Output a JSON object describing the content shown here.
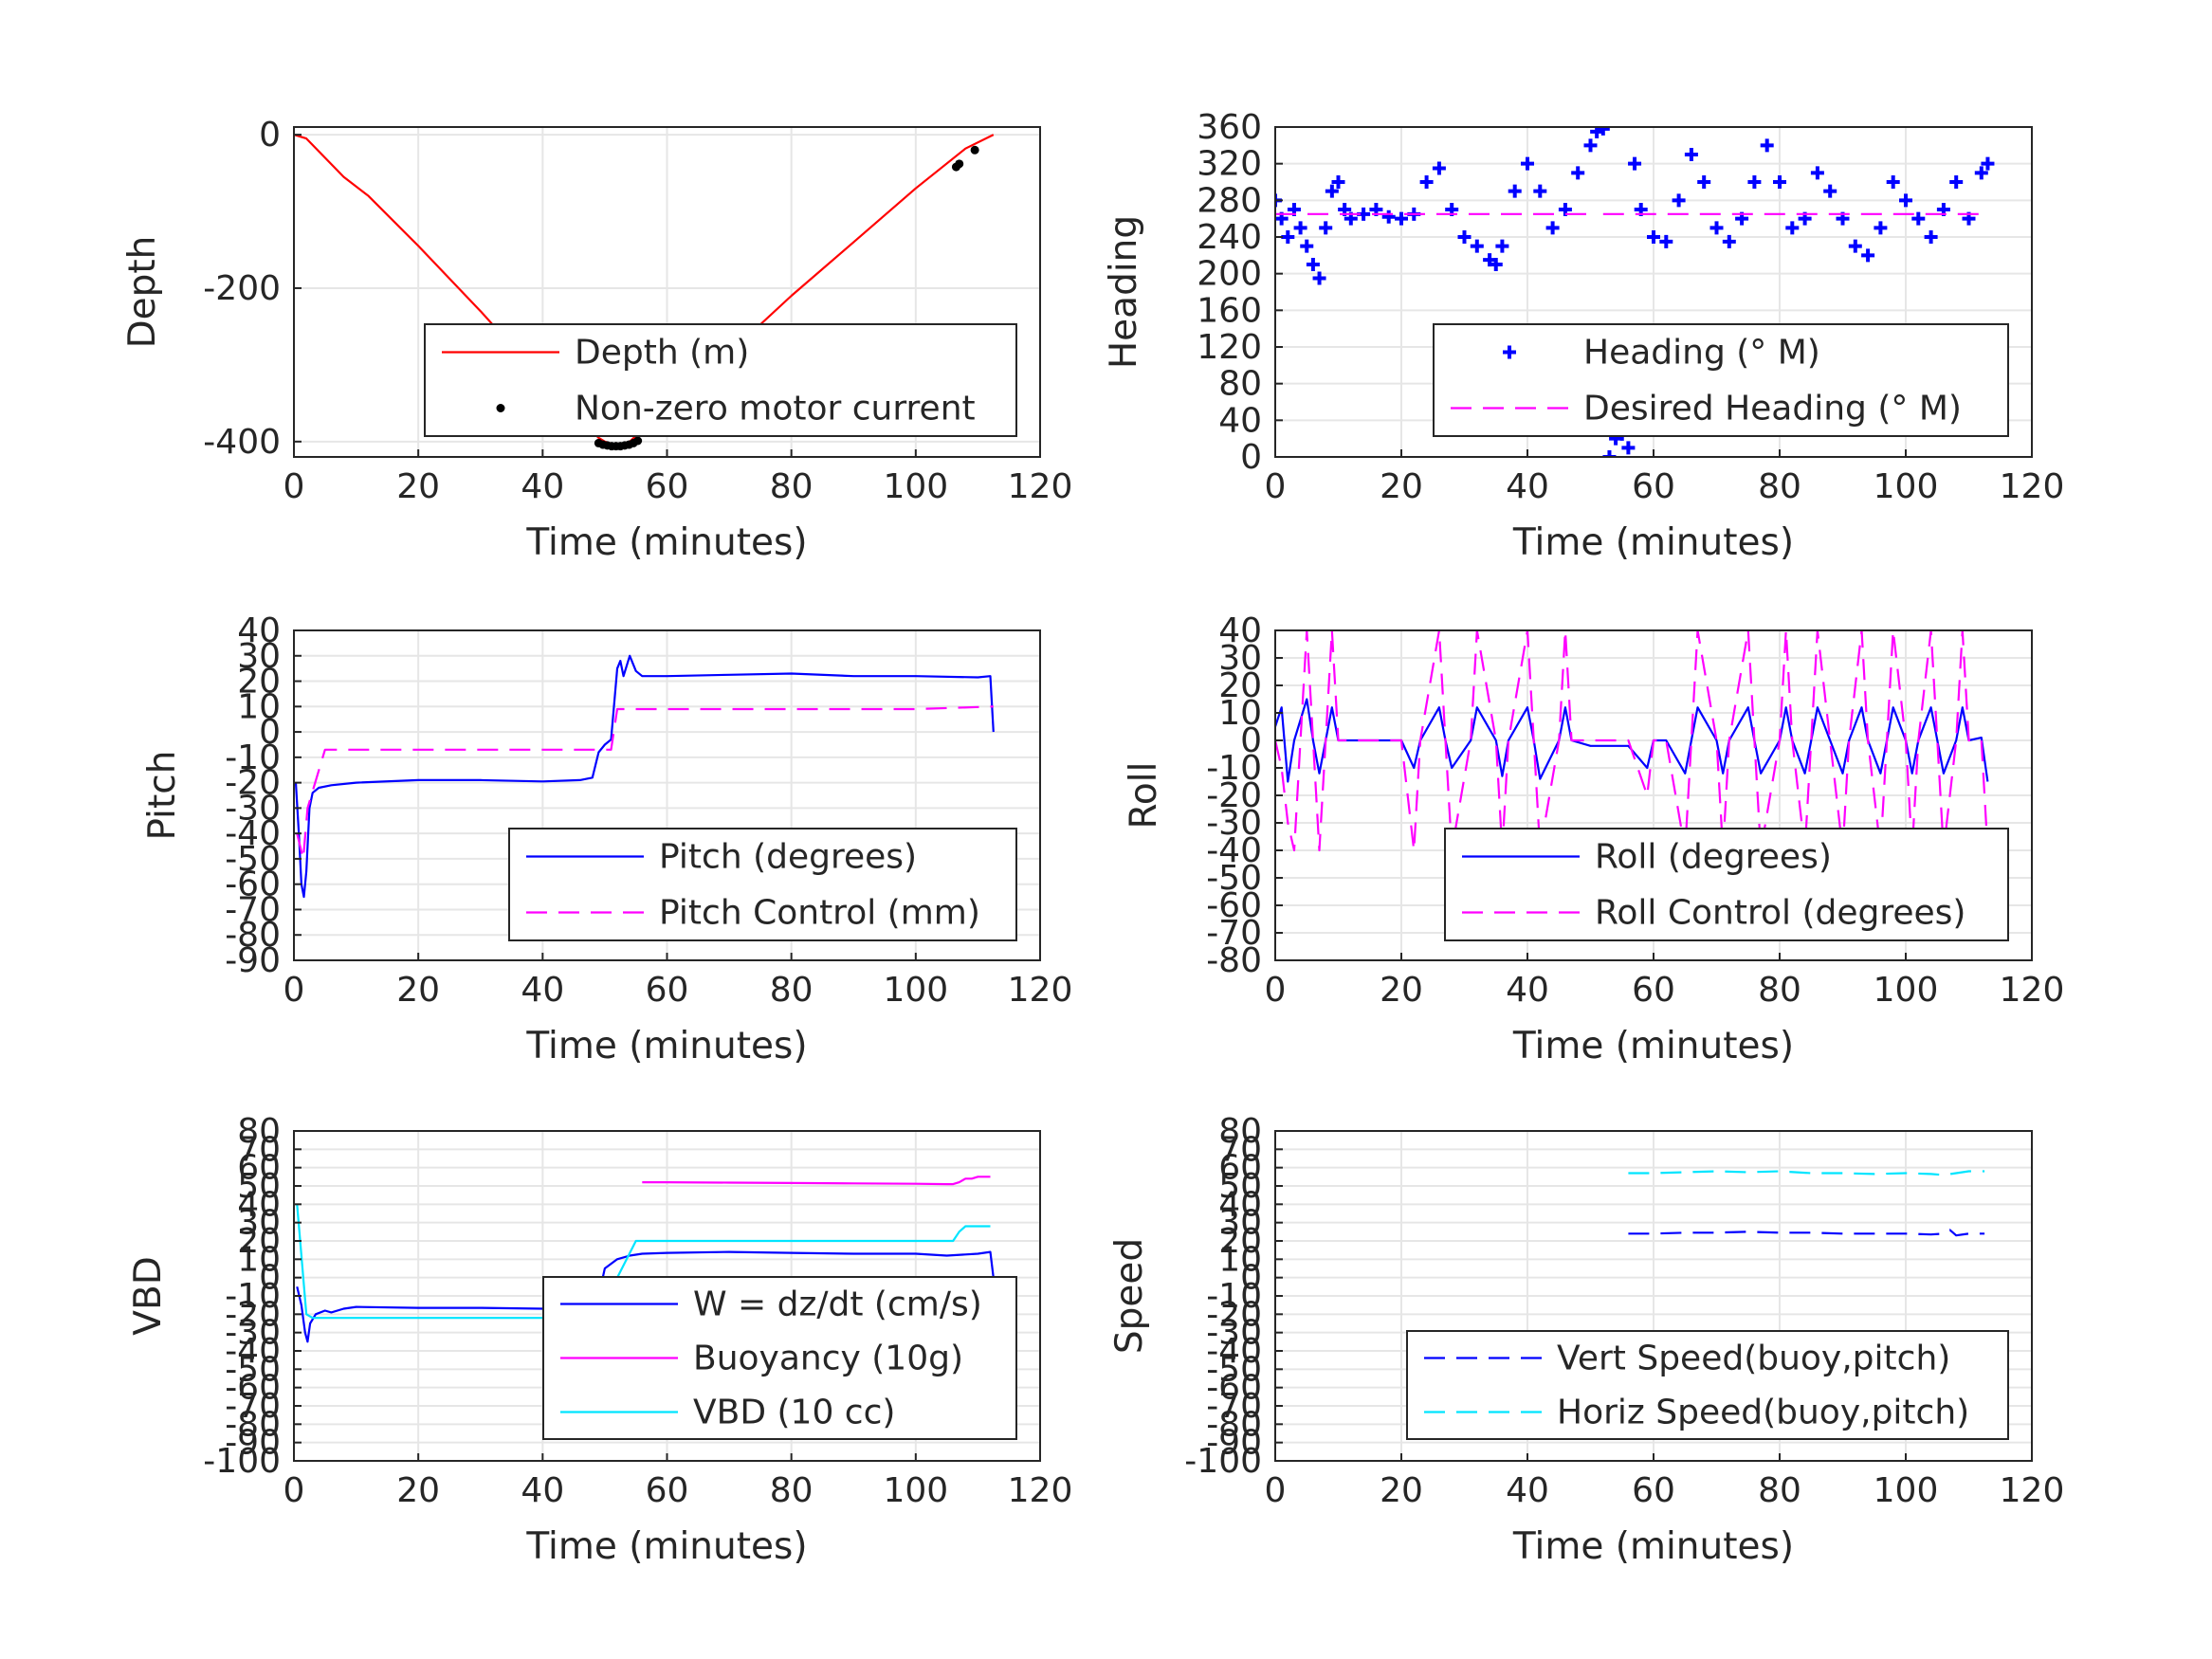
{
  "colors": {
    "depth": "#ff0000",
    "motor": "#000000",
    "heading": "#0000ff",
    "desired_heading": "#ff00ff",
    "pitch": "#0000ff",
    "pitch_control": "#ff00ff",
    "roll": "#0000ff",
    "roll_control": "#ff00ff",
    "w": "#0000ff",
    "buoyancy": "#ff00ff",
    "vbd": "#00e5ff",
    "vert_speed": "#0000ff",
    "horiz_speed": "#00e5ff"
  },
  "chart_data": [
    {
      "id": "depth",
      "type": "line",
      "title": "",
      "xlabel": "Time (minutes)",
      "ylabel": "Depth",
      "xlim": [
        0,
        120
      ],
      "ylim": [
        -420,
        10
      ],
      "xticks": [
        0,
        20,
        40,
        60,
        80,
        100,
        120
      ],
      "yticks": [
        0,
        -200,
        -400
      ],
      "grid": true,
      "legend_placement": "bottom-right",
      "series": [
        {
          "name": "Depth (m)",
          "color": "#ff0000",
          "style": "solid",
          "marker": "none",
          "x": [
            0,
            2,
            5,
            8,
            12,
            20,
            30,
            40,
            49,
            50,
            52,
            54,
            56,
            60,
            70,
            80,
            90,
            100,
            108,
            112.5
          ],
          "y": [
            0,
            -5,
            -30,
            -55,
            -80,
            -145,
            -230,
            -320,
            -395,
            -400,
            -405,
            -400,
            -385,
            -355,
            -285,
            -210,
            -140,
            -70,
            -18,
            0
          ]
        },
        {
          "name": "Non-zero motor current",
          "color": "#000000",
          "style": "none",
          "marker": "dot",
          "x": [
            49,
            49.7,
            50.4,
            51.1,
            51.8,
            52.5,
            53.2,
            53.9,
            54.6,
            55.3,
            106.5,
            107,
            109.5
          ],
          "y": [
            -402,
            -404,
            -405,
            -406,
            -406,
            -406,
            -405,
            -404,
            -402,
            -399,
            -42,
            -38,
            -20
          ]
        }
      ]
    },
    {
      "id": "heading",
      "type": "scatter",
      "title": "",
      "xlabel": "Time (minutes)",
      "ylabel": "Heading",
      "xlim": [
        0,
        120
      ],
      "ylim": [
        0,
        360
      ],
      "xticks": [
        0,
        20,
        40,
        60,
        80,
        100,
        120
      ],
      "yticks": [
        0,
        40,
        80,
        120,
        160,
        200,
        240,
        280,
        320,
        360
      ],
      "grid": true,
      "legend_placement": "bottom-right",
      "series": [
        {
          "name": "Heading (° M)",
          "color": "#0000ff",
          "style": "none",
          "marker": "plus",
          "x": [
            0,
            1,
            2,
            3,
            4,
            5,
            6,
            7,
            8,
            9,
            10,
            11,
            12,
            14,
            16,
            18,
            20,
            22,
            24,
            26,
            28,
            30,
            32,
            34,
            35,
            36,
            38,
            40,
            42,
            44,
            46,
            48,
            50,
            51,
            52,
            53,
            54,
            55,
            56,
            57,
            58,
            60,
            62,
            64,
            66,
            68,
            70,
            72,
            74,
            76,
            78,
            80,
            82,
            84,
            86,
            88,
            90,
            92,
            94,
            96,
            98,
            100,
            102,
            104,
            106,
            108,
            110,
            112,
            113
          ],
          "y": [
            280,
            260,
            240,
            270,
            250,
            230,
            210,
            195,
            250,
            290,
            300,
            270,
            260,
            265,
            270,
            262,
            260,
            265,
            300,
            315,
            270,
            240,
            230,
            215,
            210,
            230,
            290,
            320,
            290,
            250,
            270,
            310,
            340,
            355,
            358,
            0,
            20,
            25,
            10,
            320,
            270,
            240,
            235,
            280,
            330,
            300,
            250,
            235,
            260,
            300,
            340,
            300,
            250,
            260,
            310,
            290,
            260,
            230,
            220,
            250,
            300,
            280,
            260,
            240,
            270,
            300,
            260,
            310,
            320
          ]
        },
        {
          "name": "Desired Heading (° M)",
          "color": "#ff00ff",
          "style": "dashed",
          "marker": "none",
          "x": [
            0,
            40,
            48,
            50,
            null,
            52,
            56,
            60,
            80,
            100,
            113
          ],
          "y": [
            265,
            265,
            265,
            265,
            null,
            265,
            265,
            265,
            265,
            265,
            265
          ]
        }
      ]
    },
    {
      "id": "pitch",
      "type": "line",
      "title": "",
      "xlabel": "Time (minutes)",
      "ylabel": "Pitch",
      "xlim": [
        0,
        120
      ],
      "ylim": [
        -90,
        40
      ],
      "xticks": [
        0,
        20,
        40,
        60,
        80,
        100,
        120
      ],
      "yticks": [
        40,
        30,
        20,
        10,
        0,
        -10,
        -20,
        -30,
        -40,
        -50,
        -60,
        -70,
        -80,
        -90
      ],
      "grid": true,
      "legend_placement": "bottom-right",
      "series": [
        {
          "name": "Pitch (degrees)",
          "color": "#0000ff",
          "style": "solid",
          "marker": "none",
          "x": [
            0.3,
            0.8,
            1.2,
            1.6,
            2.0,
            2.5,
            3,
            4,
            6,
            10,
            20,
            30,
            40,
            46,
            48,
            49,
            50,
            51,
            52,
            52.5,
            53,
            54,
            55,
            56,
            60,
            70,
            80,
            90,
            100,
            110,
            112,
            112.5
          ],
          "y": [
            -20,
            -40,
            -60,
            -65,
            -55,
            -30,
            -24,
            -22,
            -21,
            -20,
            -19,
            -19,
            -19.5,
            -19,
            -18,
            -8,
            -5,
            -3,
            25,
            28,
            22,
            30,
            24,
            22,
            22,
            22.5,
            23,
            22,
            22,
            21.5,
            22,
            0
          ]
        },
        {
          "name": "Pitch Control (mm)",
          "color": "#ff00ff",
          "style": "dashed",
          "marker": "none",
          "x": [
            0.5,
            1.5,
            2.2,
            5,
            20,
            40,
            50,
            51,
            52,
            60,
            80,
            100,
            112.5
          ],
          "y": [
            -40,
            -50,
            -30,
            -7,
            -7,
            -7,
            -7,
            -7,
            9,
            9,
            9,
            9,
            10
          ]
        }
      ]
    },
    {
      "id": "roll",
      "type": "line",
      "title": "",
      "xlabel": "Time (minutes)",
      "ylabel": "Roll",
      "xlim": [
        0,
        120
      ],
      "ylim": [
        -80,
        40
      ],
      "xticks": [
        0,
        20,
        40,
        60,
        80,
        100,
        120
      ],
      "yticks": [
        40,
        30,
        20,
        10,
        0,
        -10,
        -20,
        -30,
        -40,
        -50,
        -60,
        -70,
        -80
      ],
      "grid": true,
      "legend_placement": "bottom-right",
      "series": [
        {
          "name": "Roll (degrees)",
          "color": "#0000ff",
          "style": "solid",
          "marker": "none",
          "x": [
            0,
            1,
            2,
            3,
            5,
            6,
            7,
            8,
            9,
            10,
            12,
            20,
            22,
            23,
            26,
            27,
            28,
            31,
            32,
            35,
            36,
            37,
            40,
            41,
            42,
            45,
            46,
            47,
            50,
            56,
            59,
            60,
            62,
            65,
            66,
            67,
            70,
            71,
            72,
            75,
            76,
            77,
            80,
            81,
            82,
            84,
            85,
            86,
            88,
            90,
            91,
            93,
            94,
            96,
            97,
            98,
            100,
            101,
            102,
            104,
            105,
            106,
            108,
            109,
            110,
            112,
            113
          ],
          "y": [
            5,
            12,
            -15,
            0,
            15,
            0,
            -12,
            0,
            12,
            0,
            0,
            0,
            -10,
            0,
            12,
            0,
            -10,
            0,
            12,
            0,
            -13,
            0,
            12,
            0,
            -14,
            0,
            12,
            0,
            -2,
            -2,
            -10,
            0,
            0,
            -12,
            0,
            12,
            0,
            -12,
            0,
            12,
            0,
            -12,
            0,
            12,
            0,
            -12,
            0,
            12,
            0,
            -12,
            0,
            12,
            0,
            -12,
            0,
            12,
            0,
            -12,
            0,
            12,
            0,
            -12,
            0,
            12,
            0,
            1,
            -15
          ]
        },
        {
          "name": "Roll Control (degrees)",
          "color": "#ff00ff",
          "style": "dashed",
          "marker": "none",
          "x": [
            0,
            1,
            2,
            3,
            4,
            5,
            6,
            7,
            8,
            9,
            10,
            12,
            20,
            22,
            23,
            26,
            27,
            28,
            31,
            32,
            35,
            36,
            37,
            40,
            41,
            42,
            45,
            46,
            47,
            50,
            56,
            59,
            60,
            62,
            65,
            66,
            67,
            70,
            71,
            72,
            75,
            76,
            77,
            80,
            81,
            82,
            84,
            85,
            86,
            88,
            90,
            91,
            93,
            94,
            96,
            97,
            98,
            100,
            101,
            102,
            104,
            105,
            106,
            108,
            109,
            110,
            112,
            113
          ],
          "y": [
            0,
            -10,
            -30,
            -40,
            0,
            40,
            0,
            -40,
            0,
            40,
            0,
            0,
            0,
            -40,
            0,
            40,
            0,
            -40,
            0,
            40,
            0,
            -40,
            0,
            40,
            0,
            -40,
            0,
            40,
            0,
            0,
            0,
            -20,
            0,
            0,
            -40,
            0,
            40,
            0,
            -40,
            0,
            40,
            0,
            -40,
            0,
            40,
            0,
            -40,
            0,
            40,
            0,
            -40,
            0,
            40,
            0,
            -40,
            0,
            40,
            0,
            -40,
            0,
            40,
            0,
            -40,
            0,
            40,
            0,
            0,
            -40
          ]
        }
      ]
    },
    {
      "id": "vbd",
      "type": "line",
      "title": "",
      "xlabel": "Time (minutes)",
      "ylabel": "VBD",
      "xlim": [
        0,
        120
      ],
      "ylim": [
        -100,
        80
      ],
      "xticks": [
        0,
        20,
        40,
        60,
        80,
        100,
        120
      ],
      "yticks": [
        80,
        70,
        60,
        50,
        40,
        30,
        20,
        10,
        0,
        -10,
        -20,
        -30,
        -40,
        -50,
        -60,
        -70,
        -80,
        -90,
        -100
      ],
      "grid": true,
      "legend_placement": "bottom-right",
      "series": [
        {
          "name": "W = dz/dt (cm/s)",
          "color": "#0000ff",
          "style": "solid",
          "marker": "none",
          "x": [
            0.5,
            1.2,
            1.8,
            2.2,
            2.6,
            3.5,
            5,
            6,
            8,
            10,
            20,
            30,
            40,
            48,
            49,
            50,
            52,
            54,
            56,
            60,
            70,
            80,
            90,
            100,
            105,
            110,
            112,
            112.5
          ],
          "y": [
            -5,
            -15,
            -30,
            -35,
            -25,
            -20,
            -18,
            -19,
            -17,
            -16,
            -16.5,
            -16.5,
            -17,
            -16,
            -10,
            5,
            10,
            12,
            13,
            13.5,
            14,
            13.5,
            13,
            13,
            12,
            13,
            14,
            0
          ]
        },
        {
          "name": "Buoyancy (10g)",
          "color": "#ff00ff",
          "style": "solid",
          "marker": "none",
          "x": [
            56,
            60,
            70,
            80,
            90,
            100,
            105,
            106,
            107,
            108,
            109,
            110,
            112
          ],
          "y": [
            52,
            52,
            51.8,
            51.6,
            51.4,
            51.2,
            51,
            51,
            52,
            54,
            54,
            55,
            55
          ]
        },
        {
          "name": "VBD (10 cc)",
          "color": "#00e5ff",
          "style": "solid",
          "marker": "none",
          "x": [
            0.5,
            1,
            2,
            3,
            5,
            10,
            20,
            30,
            40,
            48,
            50,
            52,
            55,
            60,
            70,
            80,
            90,
            100,
            106,
            107,
            108,
            110,
            112
          ],
          "y": [
            40,
            20,
            -20,
            -22,
            -22,
            -22,
            -22,
            -22,
            -22,
            -22,
            -15,
            0,
            20,
            20,
            20,
            20,
            20,
            20,
            20,
            25,
            28,
            28,
            28
          ]
        }
      ]
    },
    {
      "id": "speed",
      "type": "line",
      "title": "",
      "xlabel": "Time (minutes)",
      "ylabel": "Speed",
      "xlim": [
        0,
        120
      ],
      "ylim": [
        -100,
        80
      ],
      "xticks": [
        0,
        20,
        40,
        60,
        80,
        100,
        120
      ],
      "yticks": [
        80,
        70,
        60,
        50,
        40,
        30,
        20,
        10,
        0,
        -10,
        -20,
        -30,
        -40,
        -50,
        -60,
        -70,
        -80,
        -90,
        -100
      ],
      "grid": true,
      "legend_placement": "bottom-right",
      "series": [
        {
          "name": "Vert Speed(buoy,pitch)",
          "color": "#0000ff",
          "style": "dashed",
          "marker": "none",
          "x": [
            56,
            60,
            65,
            70,
            75,
            80,
            85,
            90,
            95,
            100,
            104,
            106,
            107,
            108,
            110,
            112.5
          ],
          "y": [
            24,
            24,
            24.5,
            24.5,
            25,
            24.5,
            24.5,
            24,
            24,
            24,
            23.5,
            24,
            26,
            23,
            24,
            24
          ]
        },
        {
          "name": "Horiz Speed(buoy,pitch)",
          "color": "#00e5ff",
          "style": "dashed",
          "marker": "none",
          "x": [
            56,
            60,
            65,
            70,
            75,
            80,
            85,
            90,
            95,
            100,
            104,
            106,
            108,
            110,
            112.5
          ],
          "y": [
            57,
            57,
            57.5,
            58,
            57.5,
            58,
            57,
            57,
            56.5,
            57,
            56.5,
            56,
            57,
            58,
            58
          ]
        }
      ]
    }
  ]
}
